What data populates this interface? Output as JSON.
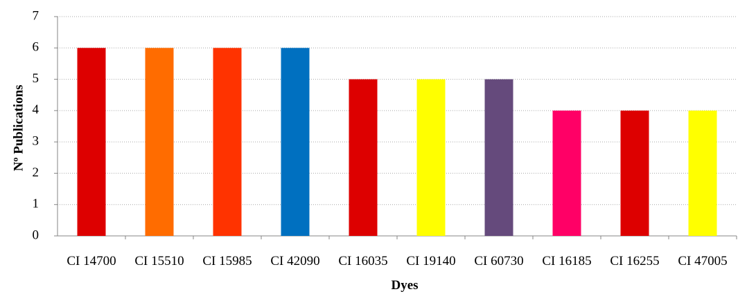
{
  "chart_data": {
    "type": "bar",
    "title": "",
    "xlabel": "Dyes",
    "ylabel": "Nº Publications",
    "ylim": [
      0,
      7
    ],
    "yticks": [
      0,
      1,
      2,
      3,
      4,
      5,
      6,
      7
    ],
    "grid": true,
    "legend": "none",
    "categories": [
      "CI 14700",
      "CI 15510",
      "CI 15985",
      "CI 42090",
      "CI 16035",
      "CI 19140",
      "CI 60730",
      "CI 16185",
      "CI 16255",
      "CI 47005"
    ],
    "values": [
      6,
      6,
      6,
      6,
      5,
      5,
      5,
      4,
      4,
      4
    ],
    "colors": [
      "#dd0000",
      "#ff6c00",
      "#ff3300",
      "#0070c0",
      "#dd0000",
      "#ffff00",
      "#654a7c",
      "#ff0066",
      "#dd0000",
      "#ffff00"
    ]
  }
}
